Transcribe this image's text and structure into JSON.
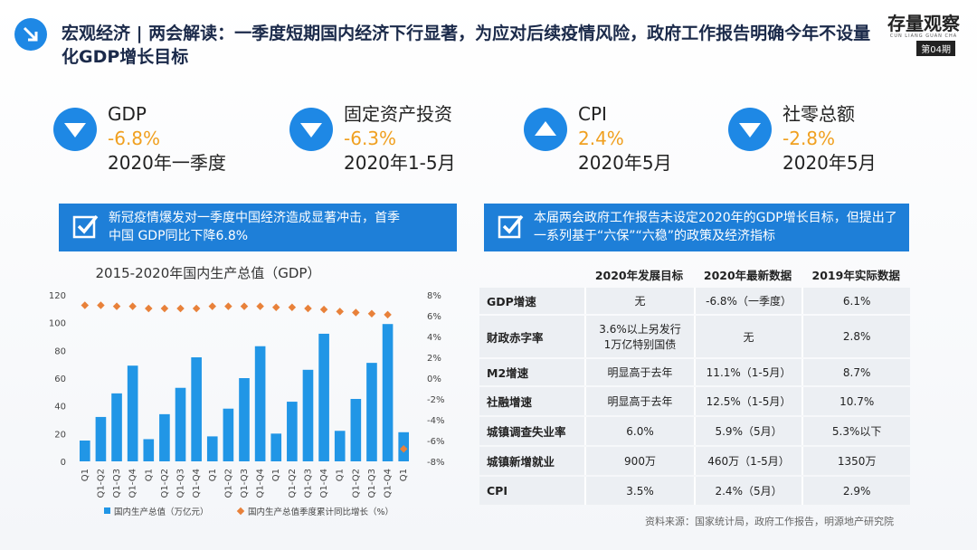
{
  "header": {
    "title": "宏观经济 | 两会解读：一季度短期国内经济下行显著，为应对后续疫情风险，政府工作报告明确今年不设量化GDP增长目标",
    "logo": "存量观察",
    "logo_sub": "CUN LIANG GUAN CHA",
    "issue": "第04期"
  },
  "indicators": [
    {
      "name": "GDP",
      "value": "-6.8%",
      "period": "2020年一季度",
      "direction": "down"
    },
    {
      "name": "固定资产投资",
      "value": "-6.3%",
      "period": "2020年1-5月",
      "direction": "down"
    },
    {
      "name": "CPI",
      "value": "2.4%",
      "period": "2020年5月",
      "direction": "up"
    },
    {
      "name": "社零总额",
      "value": "-2.8%",
      "period": "2020年5月",
      "direction": "down"
    }
  ],
  "notes": [
    "新冠疫情爆发对一季度中国经济造成显著冲击，首季中国 GDP同比下降6.8%",
    "本届两会政府工作报告未设定2020年的GDP增长目标，但提出了一系列基于“六保”“六稳”的政策及经济指标"
  ],
  "chart_data": {
    "type": "bar",
    "title": "2015-2020年国内生产总值（GDP）",
    "categories": [
      "Q1",
      "Q1-Q2",
      "Q1-Q3",
      "Q1-Q4",
      "Q1",
      "Q1-Q2",
      "Q1-Q3",
      "Q1-Q4",
      "Q1",
      "Q1-Q2",
      "Q1-Q3",
      "Q1-Q4",
      "Q1",
      "Q1-Q2",
      "Q1-Q3",
      "Q1-Q4",
      "Q1",
      "Q1-Q2",
      "Q1-Q3",
      "Q1-Q4",
      "Q1"
    ],
    "series": [
      {
        "name": "国内生产总值（万亿元）",
        "color": "#2196e6",
        "values": [
          15,
          32,
          49,
          69,
          16,
          34,
          53,
          75,
          18,
          38,
          60,
          83,
          20,
          43,
          66,
          92,
          22,
          45,
          71,
          99,
          21
        ]
      },
      {
        "name": "国内生产总值季度累计同比增长（%）",
        "color": "#e8813a",
        "axis": "y2",
        "values": [
          7.0,
          7.0,
          6.9,
          6.9,
          6.7,
          6.7,
          6.7,
          6.7,
          6.9,
          6.9,
          6.9,
          6.9,
          6.8,
          6.8,
          6.7,
          6.6,
          6.4,
          6.3,
          6.2,
          6.1,
          -6.8
        ]
      }
    ],
    "ylim": [
      0,
      120
    ],
    "yticks": [
      0,
      20,
      40,
      60,
      80,
      100,
      120
    ],
    "y2lim": [
      -8,
      8
    ],
    "y2ticks": [
      {
        "value": -8,
        "label": "-8%"
      },
      {
        "value": -6,
        "label": "-6%"
      },
      {
        "value": -4,
        "label": "-4%"
      },
      {
        "value": -2,
        "label": "-2%"
      },
      {
        "value": 0,
        "label": "0%"
      },
      {
        "value": 2,
        "label": "2%"
      },
      {
        "value": 4,
        "label": "4%"
      },
      {
        "value": 6,
        "label": "6%"
      },
      {
        "value": 8,
        "label": "8%"
      }
    ]
  },
  "table": {
    "columns": [
      "2020年发展目标",
      "2020年最新数据",
      "2019年实际数据"
    ],
    "rows": [
      [
        "GDP增速",
        "无",
        "-6.8%（一季度）",
        "6.1%"
      ],
      [
        "财政赤字率",
        "3.6%以上另发行1万亿特别国债",
        "无",
        "2.8%"
      ],
      [
        "M2增速",
        "明显高于去年",
        "11.1%（1-5月）",
        "8.7%"
      ],
      [
        "社融增速",
        "明显高于去年",
        "12.5%（1-5月）",
        "10.7%"
      ],
      [
        "城镇调查失业率",
        "6.0%",
        "5.9%（5月）",
        "5.3%以下"
      ],
      [
        "城镇新增就业",
        "900万",
        "460万（1-5月）",
        "1350万"
      ],
      [
        "CPI",
        "3.5%",
        "2.4%（5月）",
        "2.9%"
      ]
    ]
  },
  "source": "资料来源：国家统计局，政府工作报告，明源地产研究院"
}
